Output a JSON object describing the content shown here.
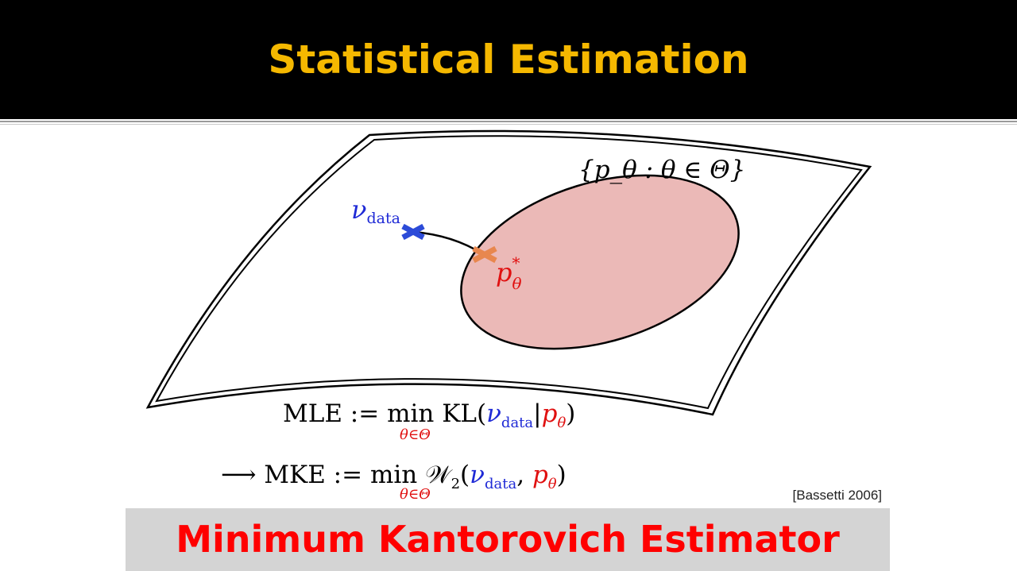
{
  "slide": {
    "title": "Statistical Estimation",
    "title_color": "#f5b800",
    "banner": "Minimum Kantorovich Estimator",
    "banner_color": "#ff0000",
    "citation": "[Bassetti 2006]"
  },
  "diagram": {
    "family_label": "{p_θ : θ ∈ Θ}",
    "data_label": "ν",
    "data_label_sub": "data",
    "optimum_label": "p",
    "optimum_label_sup": "*",
    "optimum_label_sub": "θ",
    "data_marker_color": "#2c4bd8",
    "optimum_marker_color": "#e8874e",
    "set_fill_color": "#ebb9b7"
  },
  "equations": {
    "mle_lhs": "MLE := min KL(",
    "mle_nu": "ν",
    "mle_nu_sub": "data",
    "mle_sep": "|",
    "mle_p": "p",
    "mle_p_sub": "θ",
    "mle_close": ")",
    "mle_under": "θ∈Θ",
    "mke_lhs": "⟶ MKE := min 𝒲",
    "mke_w_sub": "2",
    "mke_open": "(",
    "mke_nu": "ν",
    "mke_nu_sub": "data",
    "mke_sep": ", ",
    "mke_p": "p",
    "mke_p_sub": "θ",
    "mke_close": ")",
    "mke_under": "θ∈Θ"
  }
}
